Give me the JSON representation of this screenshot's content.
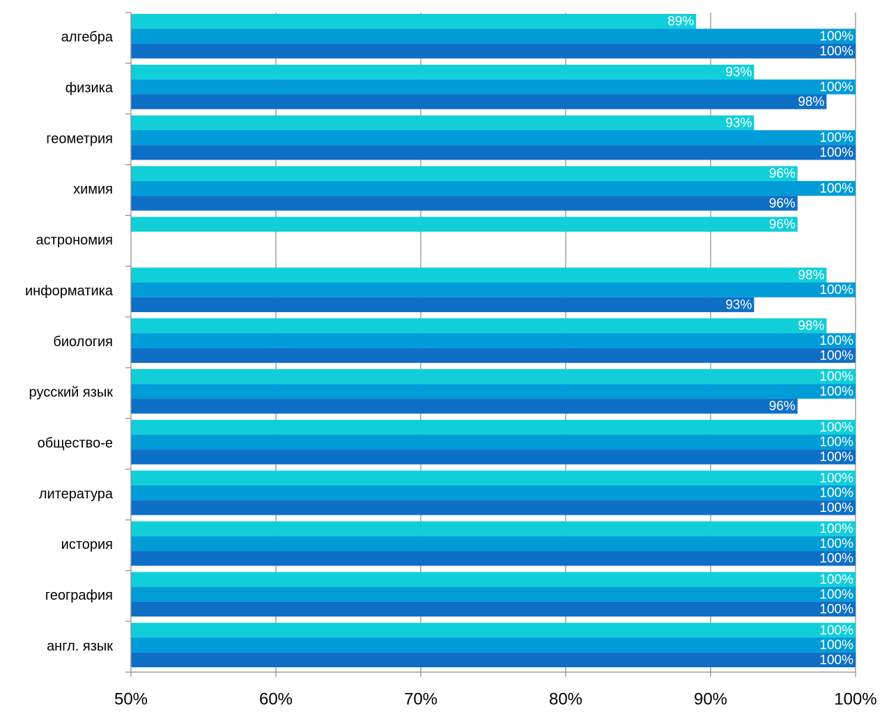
{
  "chart_data": {
    "type": "barh",
    "categories": [
      "алгебра",
      "физика",
      "геометрия",
      "химия",
      "астрономия",
      "информатика",
      "биология",
      "русский язык",
      "общество-е",
      "литература",
      "история",
      "география",
      "англ. язык"
    ],
    "series": [
      {
        "color": "#10cfd9",
        "values": [
          89,
          93,
          93,
          96,
          96,
          98,
          98,
          100,
          100,
          100,
          100,
          100,
          100
        ],
        "value_labels": [
          "89%",
          "93%",
          "93%",
          "96%",
          "96%",
          "98%",
          "98%",
          "100%",
          "100%",
          "100%",
          "100%",
          "100%",
          "100%"
        ]
      },
      {
        "color": "#009cd7",
        "values": [
          100,
          100,
          100,
          100,
          null,
          100,
          100,
          100,
          100,
          100,
          100,
          100,
          100
        ],
        "value_labels": [
          "100%",
          "100%",
          "100%",
          "100%",
          null,
          "100%",
          "100%",
          "100%",
          "100%",
          "100%",
          "100%",
          "100%",
          "100%"
        ]
      },
      {
        "color": "#0e6fc7",
        "values": [
          100,
          98,
          100,
          96,
          null,
          93,
          100,
          96,
          100,
          100,
          100,
          100,
          100
        ],
        "value_labels": [
          "100%",
          "98%",
          "100%",
          "96%",
          null,
          "93%",
          "100%",
          "96%",
          "100%",
          "100%",
          "100%",
          "100%",
          "100%"
        ]
      }
    ],
    "xlim": [
      50,
      100
    ],
    "xticks": [
      {
        "value": 50,
        "label": "50%"
      },
      {
        "value": 60,
        "label": "60%"
      },
      {
        "value": 70,
        "label": "70%"
      },
      {
        "value": 80,
        "label": "80%"
      },
      {
        "value": 90,
        "label": "90%"
      },
      {
        "value": 100,
        "label": "100%"
      }
    ],
    "grid": true
  }
}
